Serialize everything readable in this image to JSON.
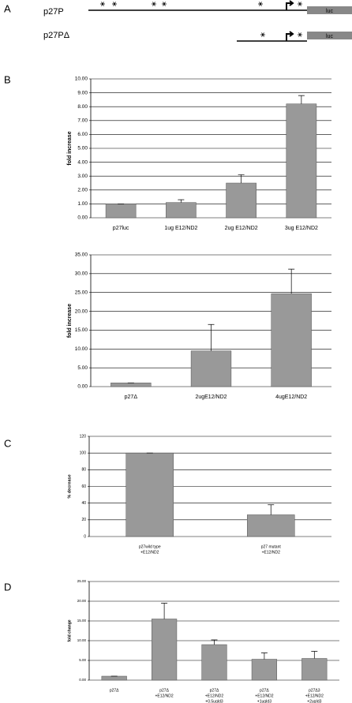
{
  "panel_labels": [
    "A",
    "B",
    "C",
    "D"
  ],
  "diagram": {
    "constructs": [
      "p27P",
      "p27PΔ"
    ],
    "reporter": [
      "luc",
      "luc"
    ]
  },
  "chart_data": [
    {
      "type": "bar",
      "ylabel": "fold increase",
      "categories": [
        [
          "p27luc"
        ],
        [
          "1ug E12/ND2"
        ],
        [
          "2ug E12/ND2"
        ],
        [
          "3ug E12/ND2"
        ]
      ],
      "values": [
        1.0,
        1.1,
        2.5,
        8.2
      ],
      "errors": [
        0,
        0.2,
        0.6,
        0.6
      ],
      "color": "#999999",
      "ylim": [
        0,
        10
      ],
      "grid": true,
      "yticks": [
        {
          "value": 0,
          "label": "0.00"
        },
        {
          "value": 1,
          "label": "1.00"
        },
        {
          "value": 2,
          "label": "2.00"
        },
        {
          "value": 3,
          "label": "3.00"
        },
        {
          "value": 4,
          "label": "4.00"
        },
        {
          "value": 5,
          "label": "5.00"
        },
        {
          "value": 6,
          "label": "6.00"
        },
        {
          "value": 7,
          "label": "7.00"
        },
        {
          "value": 8,
          "label": "8.00"
        },
        {
          "value": 9,
          "label": "9.00"
        },
        {
          "value": 10,
          "label": "10.00"
        }
      ]
    },
    {
      "type": "bar",
      "ylabel": "fold increase",
      "categories": [
        [
          "p27Δ"
        ],
        [
          "2ugE12/ND2"
        ],
        [
          "4ugE12/ND2"
        ]
      ],
      "values": [
        1.0,
        9.5,
        24.7
      ],
      "errors": [
        0,
        7.0,
        6.5
      ],
      "color": "#999999",
      "ylim": [
        0,
        35
      ],
      "grid": true,
      "yticks": [
        {
          "value": 0,
          "label": "0.00"
        },
        {
          "value": 5,
          "label": "5.00"
        },
        {
          "value": 10,
          "label": "10.00"
        },
        {
          "value": 15,
          "label": "15.00"
        },
        {
          "value": 20,
          "label": "20.00"
        },
        {
          "value": 25,
          "label": "25.00"
        },
        {
          "value": 30,
          "label": "30.00"
        },
        {
          "value": 35,
          "label": "35.00"
        }
      ]
    },
    {
      "type": "bar",
      "ylabel": "% decrease",
      "categories": [
        [
          "p27wild type",
          "+E12/ND2"
        ],
        [
          "p27 mutant",
          "+E12/ND2"
        ]
      ],
      "values": [
        100,
        26
      ],
      "errors": [
        0,
        12
      ],
      "color": "#999999",
      "ylim": [
        0,
        120
      ],
      "grid": true,
      "yticks": [
        0,
        20,
        40,
        60,
        80,
        100,
        120
      ]
    },
    {
      "type": "bar",
      "ylabel": "fold change",
      "categories": [
        [
          "p27Δ"
        ],
        [
          "p27Δ",
          "+E12/ND2"
        ],
        [
          "p27Δ",
          "+E12/ND2",
          "+0.5ugId3"
        ],
        [
          "p27Δ",
          "+E12/ND2",
          "+1ugId3"
        ],
        [
          "p27Δ3",
          "+E12/ND2",
          "+2ugId3"
        ]
      ],
      "values": [
        1.0,
        15.5,
        9.0,
        5.3,
        5.5
      ],
      "errors": [
        0,
        4.0,
        1.2,
        1.6,
        1.8
      ],
      "color": "#999999",
      "ylim": [
        0,
        25
      ],
      "grid": true,
      "yticks": [
        {
          "value": 0,
          "label": "0.00"
        },
        {
          "value": 5,
          "label": "5.00"
        },
        {
          "value": 10,
          "label": "10.00"
        },
        {
          "value": 15,
          "label": "15.00"
        },
        {
          "value": 20,
          "label": "20.00"
        },
        {
          "value": 25,
          "label": "25.00"
        }
      ]
    }
  ]
}
